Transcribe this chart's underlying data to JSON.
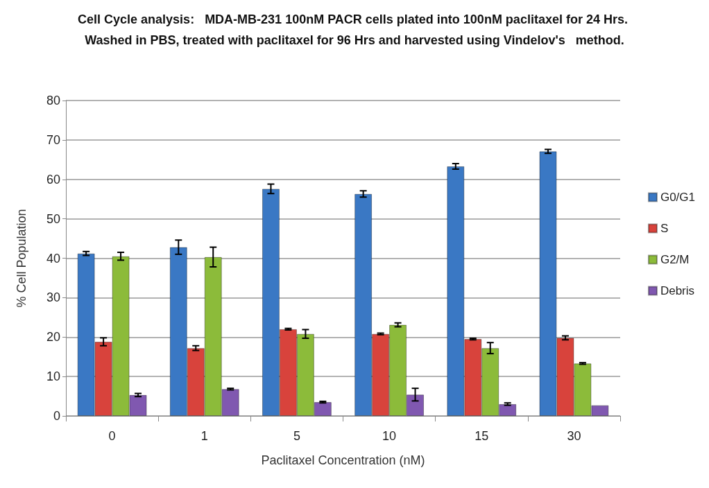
{
  "chart_data": {
    "type": "bar",
    "title": "Cell Cycle analysis:   MDA-MB-231 100nM PACR cells plated into 100nM paclitaxel for 24 Hrs. Washed in PBS, treated with paclitaxel for 96 Hrs and harvested using Vindelov's   method.",
    "xlabel": "Paclitaxel Concentration (nM)",
    "ylabel": "% Cell Population",
    "categories": [
      "0",
      "1",
      "5",
      "10",
      "15",
      "30"
    ],
    "series": [
      {
        "name": "G0/G1",
        "color": "#3a78c4",
        "values": [
          41.2,
          42.8,
          57.6,
          56.3,
          63.3,
          67.1
        ],
        "errors": [
          0.5,
          1.8,
          1.2,
          0.8,
          0.7,
          0.5
        ]
      },
      {
        "name": "S",
        "color": "#d8433c",
        "values": [
          18.8,
          17.2,
          22.0,
          20.8,
          19.5,
          19.8
        ],
        "errors": [
          1.0,
          0.6,
          0.2,
          0.2,
          0.2,
          0.5
        ]
      },
      {
        "name": "G2/M",
        "color": "#8cbb3a",
        "values": [
          40.5,
          40.3,
          20.8,
          23.1,
          17.2,
          13.3
        ],
        "errors": [
          1.0,
          2.5,
          1.1,
          0.5,
          1.4,
          0.2
        ]
      },
      {
        "name": "Debris",
        "color": "#8058b0",
        "values": [
          5.3,
          6.8,
          3.5,
          5.4,
          3.0,
          2.7
        ],
        "errors": [
          0.4,
          0.2,
          0.2,
          1.6,
          0.3,
          null
        ]
      }
    ],
    "ylim": [
      0,
      80
    ],
    "yticks": [
      0,
      10,
      20,
      30,
      40,
      50,
      60,
      70,
      80
    ],
    "grid": "y",
    "legend": "right"
  }
}
